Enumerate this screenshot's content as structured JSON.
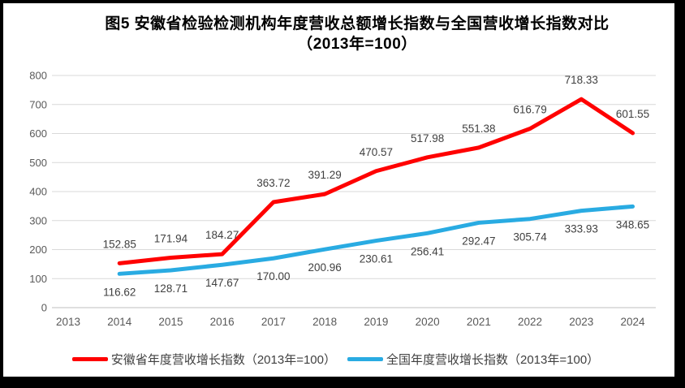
{
  "frame": {
    "border_color": "#000000",
    "canvas_background": "#FFFFFF"
  },
  "chart_data": {
    "type": "line",
    "title": "图5  安徽省检验检测机构年度营收总额增长指数与全国营收增长指数对比",
    "subtitle": "（2013年=100）",
    "x": [
      "2013",
      "2014",
      "2015",
      "2016",
      "2017",
      "2018",
      "2019",
      "2020",
      "2021",
      "2022",
      "2023",
      "2024"
    ],
    "ylim": [
      0,
      800
    ],
    "ytick_step": 100,
    "grid": true,
    "legend_position": "bottom",
    "axis_label_color": "#595959",
    "gridline_color": "#D9D9D9",
    "axis_line_color": "#BFBFBF",
    "data_label_color": "#404040",
    "series": [
      {
        "id": "anhui",
        "name": "安徽省年度营收增长指数（2013年=100）",
        "color": "#FF0000",
        "label_position": "above",
        "values": [
          null,
          152.85,
          171.94,
          184.27,
          363.72,
          391.29,
          470.57,
          517.98,
          551.38,
          616.79,
          718.33,
          601.55
        ]
      },
      {
        "id": "national",
        "name": "全国年度营收增长指数（2013年=100）",
        "color": "#29ABE2",
        "label_position": "below",
        "values": [
          null,
          116.62,
          128.71,
          147.67,
          170.0,
          200.96,
          230.61,
          256.41,
          292.47,
          305.74,
          333.93,
          348.65
        ]
      }
    ]
  }
}
